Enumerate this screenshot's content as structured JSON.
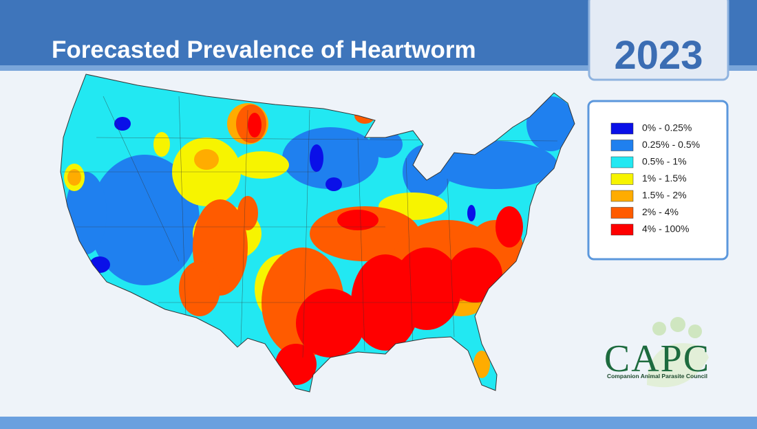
{
  "header": {
    "title": "Forecasted Prevalence of Heartworm",
    "year": "2023"
  },
  "legend": [
    {
      "label": "0% - 0.25%",
      "color": "#0a10e8"
    },
    {
      "label": "0.25% - 0.5%",
      "color": "#1f80ef"
    },
    {
      "label": "0.5% - 1%",
      "color": "#22e8f2"
    },
    {
      "label": "1% - 1.5%",
      "color": "#f7f400"
    },
    {
      "label": "1.5% - 2%",
      "color": "#ffac00"
    },
    {
      "label": "2% - 4%",
      "color": "#ff5b00"
    },
    {
      "label": "4% - 100%",
      "color": "#ff0000"
    }
  ],
  "logo": {
    "name": "CAPC",
    "subtitle": "Companion Animal Parasite Council"
  }
}
